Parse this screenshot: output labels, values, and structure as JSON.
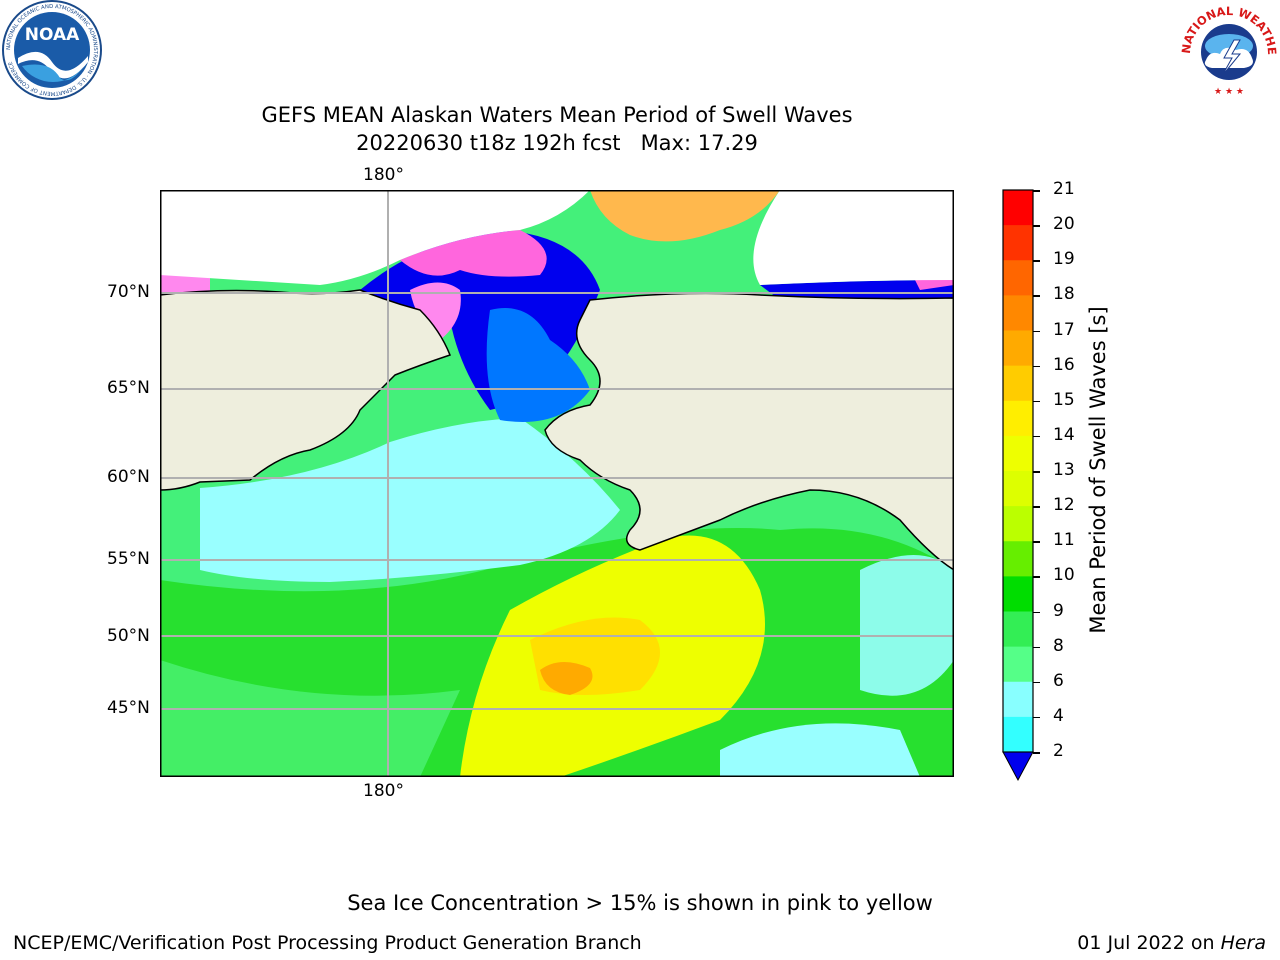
{
  "header": {
    "title_line1": "GEFS MEAN Alaskan Waters Mean Period of Swell Waves",
    "title_line2": "20220630 t18z 192h fcst   Max: 17.29"
  },
  "logos": {
    "noaa_text": "NOAA",
    "noaa_ring": "NATIONAL OCEANIC AND ATMOSPHERIC ADMINISTRATION · U.S. DEPARTMENT OF COMMERCE",
    "nws_ring": "NATIONAL WEATHER SERVICE"
  },
  "map": {
    "lon_label_top": "180°",
    "lon_label_bottom": "180°",
    "lat_labels": [
      "70°N",
      "65°N",
      "60°N",
      "55°N",
      "50°N",
      "45°N"
    ],
    "land_color": "#eeeedd",
    "grid_color": "#b0b0b0"
  },
  "colorbar": {
    "label": "Mean Period of Swell Waves [s]",
    "ticks": [
      "21",
      "20",
      "19",
      "18",
      "17",
      "16",
      "15",
      "14",
      "13",
      "12",
      "11",
      "10",
      "9",
      "8",
      "6",
      "4",
      "2"
    ],
    "colors": [
      "#ff0000",
      "#ff3300",
      "#ff6600",
      "#ff8800",
      "#ffaa00",
      "#ffcc00",
      "#ffee00",
      "#eeff00",
      "#ddff00",
      "#bbff00",
      "#66ee00",
      "#00dd00",
      "#33ee55",
      "#55ff88",
      "#88ffff",
      "#33ffff",
      "#00eeff",
      "#0077ff"
    ],
    "under_color": "#0000ee"
  },
  "footer": {
    "note": "Sea Ice Concentration > 15% is shown in pink to yellow",
    "credit": "NCEP/EMC/Verification Post Processing Product Generation Branch",
    "date": "01 Jul 2022 on ",
    "machine": "Hera"
  }
}
